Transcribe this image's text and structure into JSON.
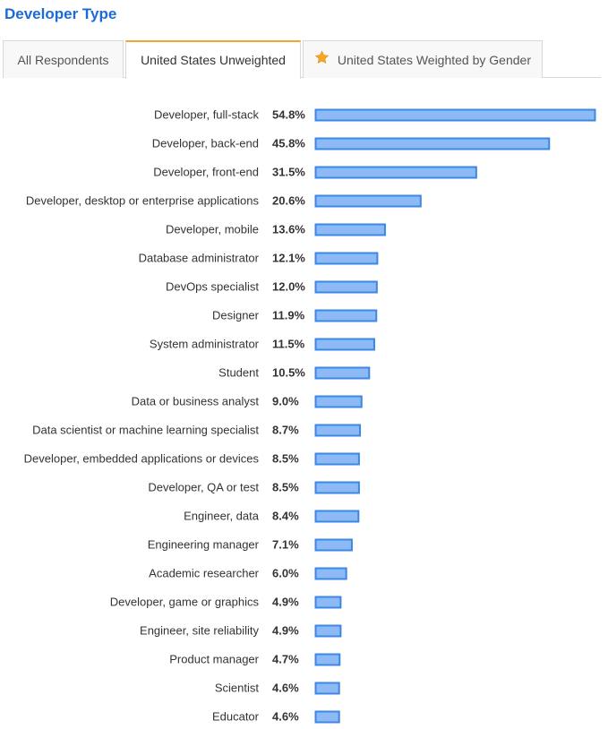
{
  "header": {
    "title": "Developer Type"
  },
  "tabs": [
    {
      "label": "All Respondents",
      "active": false,
      "icon": ""
    },
    {
      "label": "United States Unweighted",
      "active": true,
      "icon": ""
    },
    {
      "label": "United States Weighted by Gender",
      "active": false,
      "icon": "star-icon"
    }
  ],
  "colors": {
    "title": "#1c6ad6",
    "bar_fill": "#8cbaf5",
    "bar_stroke": "#3d86e3",
    "active_tab_accent": "#f0a52c",
    "star": "#f5a623"
  },
  "chart_data": {
    "type": "bar",
    "orientation": "horizontal",
    "value_suffix": "%",
    "xlim": [
      0,
      54.8
    ],
    "categories": [
      "Developer, full-stack",
      "Developer, back-end",
      "Developer, front-end",
      "Developer, desktop or enterprise applications",
      "Developer, mobile",
      "Database administrator",
      "DevOps specialist",
      "Designer",
      "System administrator",
      "Student",
      "Data or business analyst",
      "Data scientist or machine learning specialist",
      "Developer, embedded applications or devices",
      "Developer, QA or test",
      "Engineer, data",
      "Engineering manager",
      "Academic researcher",
      "Developer, game or graphics",
      "Engineer, site reliability",
      "Product manager",
      "Scientist",
      "Educator"
    ],
    "values": [
      54.8,
      45.8,
      31.5,
      20.6,
      13.6,
      12.1,
      12.0,
      11.9,
      11.5,
      10.5,
      9.0,
      8.7,
      8.5,
      8.5,
      8.4,
      7.1,
      6.0,
      4.9,
      4.9,
      4.7,
      4.6,
      4.6
    ],
    "value_labels": [
      "54.8%",
      "45.8%",
      "31.5%",
      "20.6%",
      "13.6%",
      "12.1%",
      "12.0%",
      "11.9%",
      "11.5%",
      "10.5%",
      "9.0%",
      "8.7%",
      "8.5%",
      "8.5%",
      "8.4%",
      "7.1%",
      "6.0%",
      "4.9%",
      "4.9%",
      "4.7%",
      "4.6%",
      "4.6%"
    ],
    "grid": false,
    "legend": "none"
  }
}
